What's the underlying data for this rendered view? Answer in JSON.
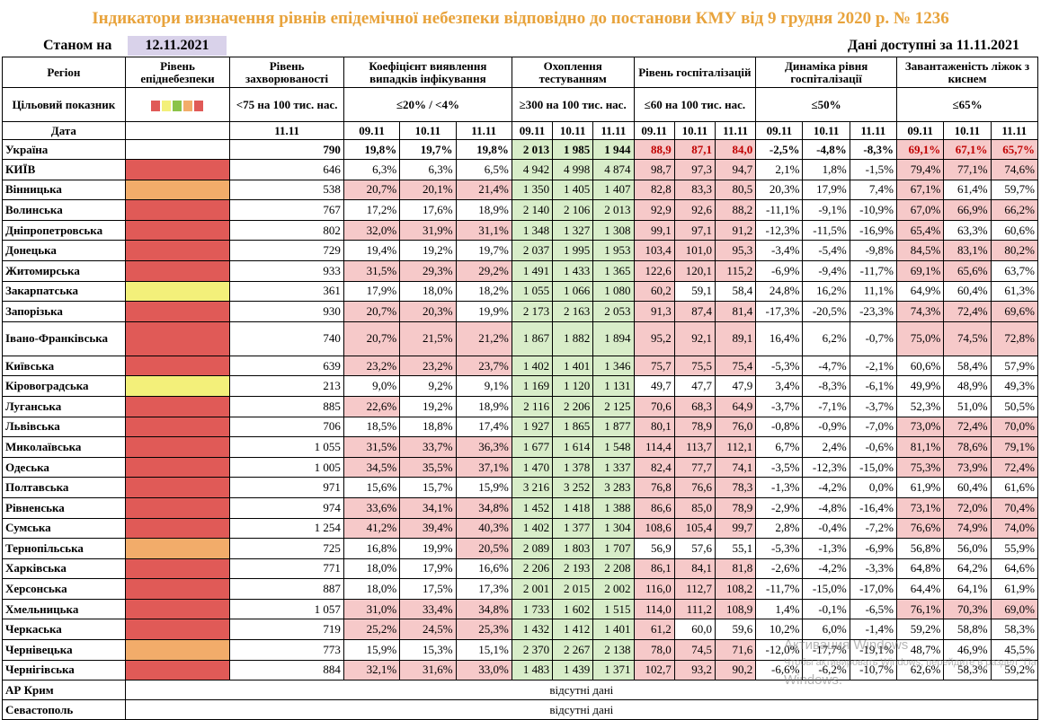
{
  "title": "Індикатори визначення рівнів епідемічної небезпеки відповідно до постанови КМУ від 9 грудня 2020 р. № 1236",
  "as_of_label": "Станом на",
  "as_of_date": "12.11.2021",
  "data_available": "Дані доступні за 11.11.2021",
  "headers": {
    "region": "Регіон",
    "level": "Рівень епіднебезпеки",
    "incidence": "Рівень захворюваності",
    "detection": "Коефіцієнт виявлення випадків інфікування",
    "testing": "Охоплення тестуванням",
    "hospital": "Рівень госпіталізацій",
    "dynamics": "Динаміка рівня госпіталізації",
    "oxygen": "Завантаженість ліжок з киснем"
  },
  "targets": {
    "label": "Цільовий показник",
    "legend_colors": [
      "#e05a57",
      "#f3f07a",
      "#8bc34a",
      "#f2ac6a",
      "#e05a57"
    ],
    "incidence": "<75 на 100 тис. нас.",
    "detection": "≤20% / <4%",
    "testing": "≥300 на 100 тис. нас.",
    "hospital": "≤60 на 100 тис. нас.",
    "dynamics": "≤50%",
    "oxygen": "≤65%"
  },
  "dates": {
    "label": "Дата",
    "incidence": "11.11",
    "d1": "09.11",
    "d2": "10.11",
    "d3": "11.11"
  },
  "level_colors": {
    "red": "#e05a57",
    "orange": "#f2ac6a",
    "yellow": "#f3f07a"
  },
  "ukraine": {
    "name": "Україна",
    "incidence": "790",
    "detection": [
      "19,8%",
      "19,7%",
      "19,8%"
    ],
    "testing": [
      "2 013",
      "1 985",
      "1 944"
    ],
    "hospital": [
      "88,9",
      "87,1",
      "84,0"
    ],
    "dynamics": [
      "-2,5%",
      "-4,8%",
      "-8,3%"
    ],
    "oxygen": [
      "69,1%",
      "67,1%",
      "65,7%"
    ]
  },
  "rows": [
    {
      "name": "КИЇВ",
      "level": "red",
      "incidence": "646",
      "detection": [
        "6,3%",
        "6,3%",
        "6,5%"
      ],
      "testing": [
        "4 942",
        "4 998",
        "4 874"
      ],
      "hospital": [
        "98,7",
        "97,3",
        "94,7"
      ],
      "dynamics": [
        "2,1%",
        "1,8%",
        "-1,5%"
      ],
      "oxygen": [
        "79,4%",
        "77,1%",
        "74,6%"
      ]
    },
    {
      "name": "Вінницька",
      "level": "orange",
      "incidence": "538",
      "detection": [
        "20,7%",
        "20,1%",
        "21,4%"
      ],
      "testing": [
        "1 350",
        "1 405",
        "1 407"
      ],
      "hospital": [
        "82,8",
        "83,3",
        "80,5"
      ],
      "dynamics": [
        "20,3%",
        "17,9%",
        "7,4%"
      ],
      "oxygen": [
        "67,1%",
        "61,4%",
        "59,7%"
      ]
    },
    {
      "name": "Волинська",
      "level": "red",
      "incidence": "767",
      "detection": [
        "17,2%",
        "17,6%",
        "18,9%"
      ],
      "testing": [
        "2 140",
        "2 106",
        "2 013"
      ],
      "hospital": [
        "92,9",
        "92,6",
        "88,2"
      ],
      "dynamics": [
        "-11,1%",
        "-9,1%",
        "-10,9%"
      ],
      "oxygen": [
        "67,0%",
        "66,9%",
        "66,2%"
      ]
    },
    {
      "name": "Дніпропетровська",
      "level": "red",
      "incidence": "802",
      "detection": [
        "32,0%",
        "31,9%",
        "31,1%"
      ],
      "testing": [
        "1 348",
        "1 327",
        "1 308"
      ],
      "hospital": [
        "99,1",
        "97,1",
        "91,2"
      ],
      "dynamics": [
        "-12,3%",
        "-11,5%",
        "-16,9%"
      ],
      "oxygen": [
        "65,4%",
        "63,3%",
        "60,6%"
      ]
    },
    {
      "name": "Донецька",
      "level": "red",
      "incidence": "729",
      "detection": [
        "19,4%",
        "19,2%",
        "19,7%"
      ],
      "testing": [
        "2 037",
        "1 995",
        "1 953"
      ],
      "hospital": [
        "103,4",
        "101,0",
        "95,3"
      ],
      "dynamics": [
        "-3,4%",
        "-5,4%",
        "-9,8%"
      ],
      "oxygen": [
        "84,5%",
        "83,1%",
        "80,2%"
      ]
    },
    {
      "name": "Житомирська",
      "level": "red",
      "incidence": "933",
      "detection": [
        "31,5%",
        "29,3%",
        "29,2%"
      ],
      "testing": [
        "1 491",
        "1 433",
        "1 365"
      ],
      "hospital": [
        "122,6",
        "120,1",
        "115,2"
      ],
      "dynamics": [
        "-6,9%",
        "-9,4%",
        "-11,7%"
      ],
      "oxygen": [
        "69,1%",
        "65,6%",
        "63,7%"
      ]
    },
    {
      "name": "Закарпатська",
      "level": "yellow",
      "incidence": "361",
      "detection": [
        "17,9%",
        "18,0%",
        "18,2%"
      ],
      "testing": [
        "1 055",
        "1 066",
        "1 080"
      ],
      "hospital": [
        "60,2",
        "59,1",
        "58,4"
      ],
      "dynamics": [
        "24,8%",
        "16,2%",
        "11,1%"
      ],
      "oxygen": [
        "64,9%",
        "60,4%",
        "61,3%"
      ]
    },
    {
      "name": "Запорізька",
      "level": "red",
      "incidence": "930",
      "detection": [
        "20,7%",
        "20,3%",
        "19,9%"
      ],
      "testing": [
        "2 173",
        "2 163",
        "2 053"
      ],
      "hospital": [
        "91,3",
        "87,4",
        "81,4"
      ],
      "dynamics": [
        "-17,3%",
        "-20,5%",
        "-23,3%"
      ],
      "oxygen": [
        "74,3%",
        "72,4%",
        "69,6%"
      ]
    },
    {
      "name": "Івано-Франківська",
      "level": "red",
      "incidence": "740",
      "detection": [
        "20,7%",
        "21,5%",
        "21,2%"
      ],
      "testing": [
        "1 867",
        "1 882",
        "1 894"
      ],
      "hospital": [
        "95,2",
        "92,1",
        "89,1"
      ],
      "dynamics": [
        "16,4%",
        "6,2%",
        "-0,7%"
      ],
      "oxygen": [
        "75,0%",
        "74,5%",
        "72,8%"
      ]
    },
    {
      "name": "Київська",
      "level": "red",
      "incidence": "639",
      "detection": [
        "23,2%",
        "23,2%",
        "23,7%"
      ],
      "testing": [
        "1 402",
        "1 401",
        "1 346"
      ],
      "hospital": [
        "75,7",
        "75,5",
        "75,4"
      ],
      "dynamics": [
        "-5,3%",
        "-4,7%",
        "-2,1%"
      ],
      "oxygen": [
        "60,6%",
        "58,4%",
        "57,9%"
      ]
    },
    {
      "name": "Кіровоградська",
      "level": "yellow",
      "incidence": "213",
      "detection": [
        "9,0%",
        "9,2%",
        "9,1%"
      ],
      "testing": [
        "1 169",
        "1 120",
        "1 131"
      ],
      "hospital": [
        "49,7",
        "47,7",
        "47,9"
      ],
      "dynamics": [
        "3,4%",
        "-8,3%",
        "-6,1%"
      ],
      "oxygen": [
        "49,9%",
        "48,9%",
        "49,3%"
      ]
    },
    {
      "name": "Луганська",
      "level": "red",
      "incidence": "885",
      "detection": [
        "22,6%",
        "19,2%",
        "18,9%"
      ],
      "testing": [
        "2 116",
        "2 206",
        "2 125"
      ],
      "hospital": [
        "70,6",
        "68,3",
        "64,9"
      ],
      "dynamics": [
        "-3,7%",
        "-7,1%",
        "-3,7%"
      ],
      "oxygen": [
        "52,3%",
        "51,0%",
        "50,5%"
      ]
    },
    {
      "name": "Львівська",
      "level": "red",
      "incidence": "706",
      "detection": [
        "18,5%",
        "18,8%",
        "17,4%"
      ],
      "testing": [
        "1 927",
        "1 865",
        "1 877"
      ],
      "hospital": [
        "80,1",
        "78,9",
        "76,0"
      ],
      "dynamics": [
        "-0,8%",
        "-0,9%",
        "-7,0%"
      ],
      "oxygen": [
        "73,0%",
        "72,4%",
        "70,0%"
      ]
    },
    {
      "name": "Миколаївська",
      "level": "red",
      "incidence": "1 055",
      "detection": [
        "31,5%",
        "33,7%",
        "36,3%"
      ],
      "testing": [
        "1 677",
        "1 614",
        "1 548"
      ],
      "hospital": [
        "114,4",
        "113,7",
        "112,1"
      ],
      "dynamics": [
        "6,7%",
        "2,4%",
        "-0,6%"
      ],
      "oxygen": [
        "81,1%",
        "78,6%",
        "79,1%"
      ]
    },
    {
      "name": "Одеська",
      "level": "red",
      "incidence": "1 005",
      "detection": [
        "34,5%",
        "35,5%",
        "37,1%"
      ],
      "testing": [
        "1 470",
        "1 378",
        "1 337"
      ],
      "hospital": [
        "82,4",
        "77,7",
        "74,1"
      ],
      "dynamics": [
        "-3,5%",
        "-12,3%",
        "-15,0%"
      ],
      "oxygen": [
        "75,3%",
        "73,9%",
        "72,4%"
      ]
    },
    {
      "name": "Полтавська",
      "level": "red",
      "incidence": "971",
      "detection": [
        "15,6%",
        "15,7%",
        "15,9%"
      ],
      "testing": [
        "3 216",
        "3 252",
        "3 283"
      ],
      "hospital": [
        "76,8",
        "76,6",
        "78,3"
      ],
      "dynamics": [
        "-1,3%",
        "-4,2%",
        "0,0%"
      ],
      "oxygen": [
        "61,9%",
        "60,4%",
        "61,6%"
      ]
    },
    {
      "name": "Рівненська",
      "level": "red",
      "incidence": "974",
      "detection": [
        "33,6%",
        "34,1%",
        "34,8%"
      ],
      "testing": [
        "1 452",
        "1 418",
        "1 388"
      ],
      "hospital": [
        "86,6",
        "85,0",
        "78,9"
      ],
      "dynamics": [
        "-2,9%",
        "-4,8%",
        "-16,4%"
      ],
      "oxygen": [
        "73,1%",
        "72,0%",
        "70,4%"
      ]
    },
    {
      "name": "Сумська",
      "level": "red",
      "incidence": "1 254",
      "detection": [
        "41,2%",
        "39,4%",
        "40,3%"
      ],
      "testing": [
        "1 402",
        "1 377",
        "1 304"
      ],
      "hospital": [
        "108,6",
        "105,4",
        "99,7"
      ],
      "dynamics": [
        "2,8%",
        "-0,4%",
        "-7,2%"
      ],
      "oxygen": [
        "76,6%",
        "74,9%",
        "74,0%"
      ]
    },
    {
      "name": "Тернопільська",
      "level": "orange",
      "incidence": "725",
      "detection": [
        "16,8%",
        "19,9%",
        "20,5%"
      ],
      "testing": [
        "2 089",
        "1 803",
        "1 707"
      ],
      "hospital": [
        "56,9",
        "57,6",
        "55,1"
      ],
      "dynamics": [
        "-5,3%",
        "-1,3%",
        "-6,9%"
      ],
      "oxygen": [
        "56,8%",
        "56,0%",
        "55,9%"
      ]
    },
    {
      "name": "Харківська",
      "level": "red",
      "incidence": "771",
      "detection": [
        "18,0%",
        "17,9%",
        "16,6%"
      ],
      "testing": [
        "2 206",
        "2 193",
        "2 208"
      ],
      "hospital": [
        "86,1",
        "84,1",
        "81,8"
      ],
      "dynamics": [
        "-2,6%",
        "-4,2%",
        "-3,3%"
      ],
      "oxygen": [
        "64,8%",
        "64,2%",
        "64,6%"
      ]
    },
    {
      "name": "Херсонська",
      "level": "red",
      "incidence": "887",
      "detection": [
        "18,0%",
        "17,5%",
        "17,3%"
      ],
      "testing": [
        "2 001",
        "2 015",
        "2 002"
      ],
      "hospital": [
        "116,0",
        "112,7",
        "108,2"
      ],
      "dynamics": [
        "-11,7%",
        "-15,0%",
        "-17,0%"
      ],
      "oxygen": [
        "64,4%",
        "64,1%",
        "61,9%"
      ]
    },
    {
      "name": "Хмельницька",
      "level": "red",
      "incidence": "1 057",
      "detection": [
        "31,0%",
        "33,4%",
        "34,8%"
      ],
      "testing": [
        "1 733",
        "1 602",
        "1 515"
      ],
      "hospital": [
        "114,0",
        "111,2",
        "108,9"
      ],
      "dynamics": [
        "1,4%",
        "-0,1%",
        "-6,5%"
      ],
      "oxygen": [
        "76,1%",
        "70,3%",
        "69,0%"
      ]
    },
    {
      "name": "Черкаська",
      "level": "red",
      "incidence": "719",
      "detection": [
        "25,2%",
        "24,5%",
        "25,3%"
      ],
      "testing": [
        "1 432",
        "1 412",
        "1 401"
      ],
      "hospital": [
        "61,2",
        "60,0",
        "59,6"
      ],
      "dynamics": [
        "10,2%",
        "6,0%",
        "-1,4%"
      ],
      "oxygen": [
        "59,2%",
        "58,8%",
        "58,3%"
      ]
    },
    {
      "name": "Чернівецька",
      "level": "orange",
      "incidence": "773",
      "detection": [
        "15,9%",
        "15,3%",
        "15,1%"
      ],
      "testing": [
        "2 370",
        "2 267",
        "2 138"
      ],
      "hospital": [
        "78,0",
        "74,5",
        "71,6"
      ],
      "dynamics": [
        "-12,0%",
        "-17,7%",
        "-19,1%"
      ],
      "oxygen": [
        "48,7%",
        "46,9%",
        "45,5%"
      ]
    },
    {
      "name": "Чернігівська",
      "level": "red",
      "incidence": "884",
      "detection": [
        "32,1%",
        "31,6%",
        "33,0%"
      ],
      "testing": [
        "1 483",
        "1 439",
        "1 371"
      ],
      "hospital": [
        "102,7",
        "93,2",
        "90,2"
      ],
      "dynamics": [
        "-6,6%",
        "-6,2%",
        "-10,7%"
      ],
      "oxygen": [
        "62,6%",
        "58,3%",
        "59,2%"
      ]
    }
  ],
  "missing_rows": [
    {
      "name": "АР Крим",
      "note": "відсутні дані"
    },
    {
      "name": "Севастополь",
      "note": "відсутні дані"
    }
  ],
  "watermark": {
    "line1": "Активация Windows",
    "line2": "Чтобы активировать Windows, перейдите в раздел \"Параметры\".",
    "line3": "Windows."
  }
}
